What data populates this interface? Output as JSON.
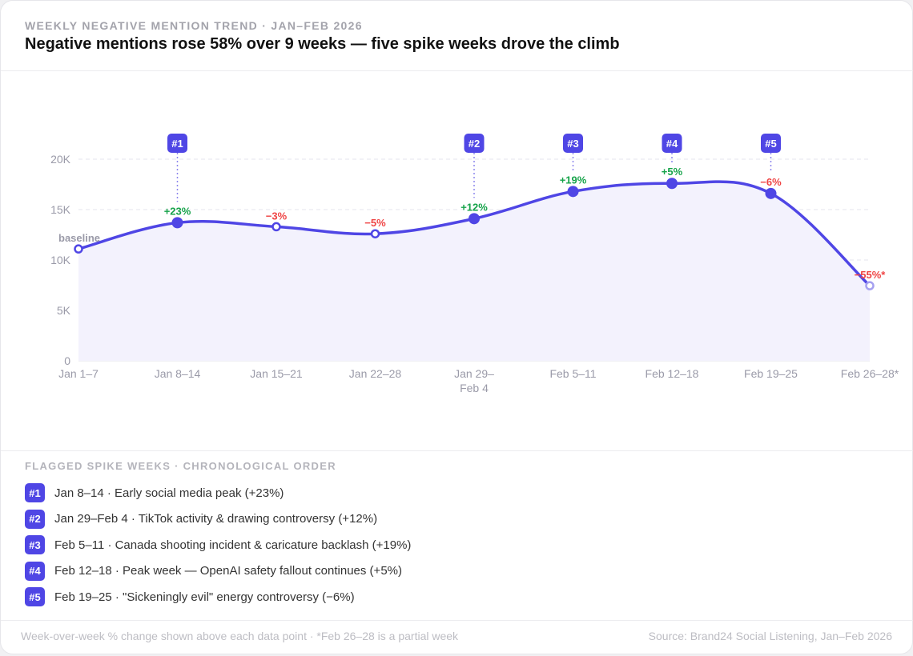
{
  "header": {
    "eyebrow": "WEEKLY NEGATIVE MENTION TREND · JAN–FEB 2026",
    "title": "Negative mentions rose 58% over 9 weeks — five spike weeks drove the climb"
  },
  "chart_data": {
    "type": "line",
    "categories": [
      "Jan 1–7",
      "Jan 8–14",
      "Jan 15–21",
      "Jan 22–28",
      "Jan 29–|Feb 4",
      "Feb 5–11",
      "Feb 12–18",
      "Feb 19–25",
      "Feb 26–28*"
    ],
    "values": [
      11100,
      13700,
      13300,
      12600,
      14100,
      16800,
      17600,
      16600,
      7450
    ],
    "change_labels": [
      "baseline",
      "+23%",
      "−3%",
      "−5%",
      "+12%",
      "+19%",
      "+5%",
      "−6%",
      "−55%*"
    ],
    "spikes": [
      {
        "index": 1,
        "label": "#1"
      },
      {
        "index": 4,
        "label": "#2"
      },
      {
        "index": 5,
        "label": "#3"
      },
      {
        "index": 6,
        "label": "#4"
      },
      {
        "index": 7,
        "label": "#5"
      }
    ],
    "ylim": [
      0,
      20000
    ],
    "yticks": [
      {
        "v": 0,
        "label": "0"
      },
      {
        "v": 5000,
        "label": "5K"
      },
      {
        "v": 10000,
        "label": "10K"
      },
      {
        "v": 15000,
        "label": "15K"
      },
      {
        "v": 20000,
        "label": "20K"
      }
    ],
    "grid": true,
    "colors": {
      "line": "#4f46e5",
      "up": "#16a34a",
      "down": "#ef4444",
      "fill": "#f3f2fd",
      "baseline": "#9a9aa8"
    }
  },
  "spikes_section": {
    "title": "FLAGGED SPIKE WEEKS · CHRONOLOGICAL ORDER",
    "items": [
      {
        "badge": "#1",
        "text": "Jan 8–14 · Early social media peak (+23%)"
      },
      {
        "badge": "#2",
        "text": "Jan 29–Feb 4 · TikTok activity & drawing controversy (+12%)"
      },
      {
        "badge": "#3",
        "text": "Feb 5–11 · Canada shooting incident & caricature backlash (+19%)"
      },
      {
        "badge": "#4",
        "text": "Feb 12–18 · Peak week — OpenAI safety fallout continues (+5%)"
      },
      {
        "badge": "#5",
        "text": "Feb 19–25 · \"Sickeningly evil\" energy controversy (−6%)"
      }
    ]
  },
  "footer": {
    "note": "Week-over-week % change shown above each data point · *Feb 26–28 is a partial week",
    "source": "Source: Brand24 Social Listening, Jan–Feb 2026"
  }
}
